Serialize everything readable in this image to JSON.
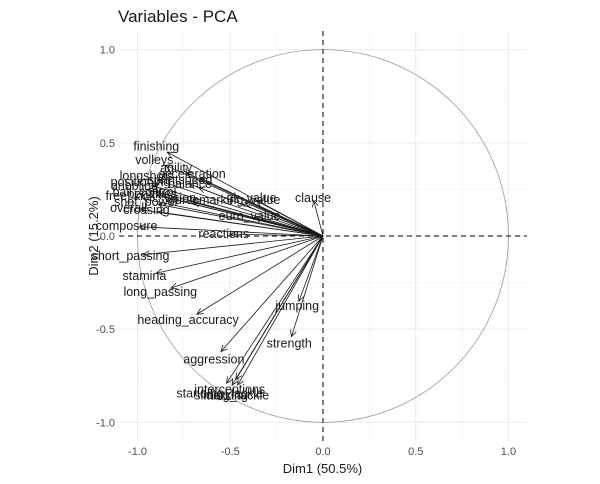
{
  "chart_data": {
    "type": "scatter",
    "subtype": "pca-variable-correlation-circle",
    "title": "Variables - PCA",
    "xlabel": "Dim1 (50.5%)",
    "ylabel": "Dim2 (15.2%)",
    "xlim": [
      -1.1,
      1.1
    ],
    "ylim": [
      -1.1,
      1.1
    ],
    "xticks": [
      -1.0,
      -0.5,
      0.0,
      0.5,
      1.0
    ],
    "yticks": [
      -1.0,
      -0.5,
      0.0,
      0.5,
      1.0
    ],
    "xtick_labels": [
      "-1.0",
      "-0.5",
      "0.0",
      "0.5",
      "1.0"
    ],
    "ytick_labels": [
      "-1.0",
      "-0.5",
      "0.0",
      "0.5",
      "1.0"
    ],
    "grid": true,
    "unit_circle": true,
    "variables": [
      {
        "name": "finishing",
        "x": -0.84,
        "y": 0.45
      },
      {
        "name": "volleys",
        "x": -0.85,
        "y": 0.38
      },
      {
        "name": "agility",
        "x": -0.74,
        "y": 0.34
      },
      {
        "name": "acceleration",
        "x": -0.66,
        "y": 0.31
      },
      {
        "name": "longshots",
        "x": -0.89,
        "y": 0.3
      },
      {
        "name": "sprintspeed",
        "x": -0.72,
        "y": 0.28
      },
      {
        "name": "positioning",
        "x": -0.92,
        "y": 0.27
      },
      {
        "name": "balance",
        "x": -0.67,
        "y": 0.26
      },
      {
        "name": "dribbling",
        "x": -0.95,
        "y": 0.25
      },
      {
        "name": "ball_control",
        "x": -0.9,
        "y": 0.22
      },
      {
        "name": "penalties",
        "x": -0.86,
        "y": 0.21
      },
      {
        "name": "free_kick",
        "x": -0.97,
        "y": 0.2
      },
      {
        "name": "vision",
        "x": -0.72,
        "y": 0.19
      },
      {
        "name": "curve",
        "x": -0.7,
        "y": 0.18
      },
      {
        "name": "shot_power",
        "x": -0.89,
        "y": 0.17
      },
      {
        "name": "marking_value",
        "x": -0.42,
        "y": 0.18
      },
      {
        "name": "gk_value",
        "x": -0.36,
        "y": 0.19
      },
      {
        "name": "clause",
        "x": -0.05,
        "y": 0.19
      },
      {
        "name": "overall",
        "x": -0.98,
        "y": 0.14
      },
      {
        "name": "crossing",
        "x": -0.89,
        "y": 0.13
      },
      {
        "name": "euro_value",
        "x": -0.37,
        "y": 0.1
      },
      {
        "name": "composure",
        "x": -0.99,
        "y": 0.05
      },
      {
        "name": "reactions",
        "x": -0.5,
        "y": 0.01
      },
      {
        "name": "short_passing",
        "x": -0.97,
        "y": -0.1
      },
      {
        "name": "stamina",
        "x": -0.9,
        "y": -0.2
      },
      {
        "name": "long_passing",
        "x": -0.82,
        "y": -0.28
      },
      {
        "name": "heading_accuracy",
        "x": -0.68,
        "y": -0.42
      },
      {
        "name": "jumping",
        "x": -0.13,
        "y": -0.35
      },
      {
        "name": "strength",
        "x": -0.17,
        "y": -0.54
      },
      {
        "name": "aggression",
        "x": -0.55,
        "y": -0.62
      },
      {
        "name": "interceptions",
        "x": -0.47,
        "y": -0.77
      },
      {
        "name": "standing_tackle",
        "x": -0.52,
        "y": -0.79
      },
      {
        "name": "marking",
        "x": -0.49,
        "y": -0.8
      },
      {
        "name": "sliding_tackle",
        "x": -0.46,
        "y": -0.8
      }
    ]
  }
}
